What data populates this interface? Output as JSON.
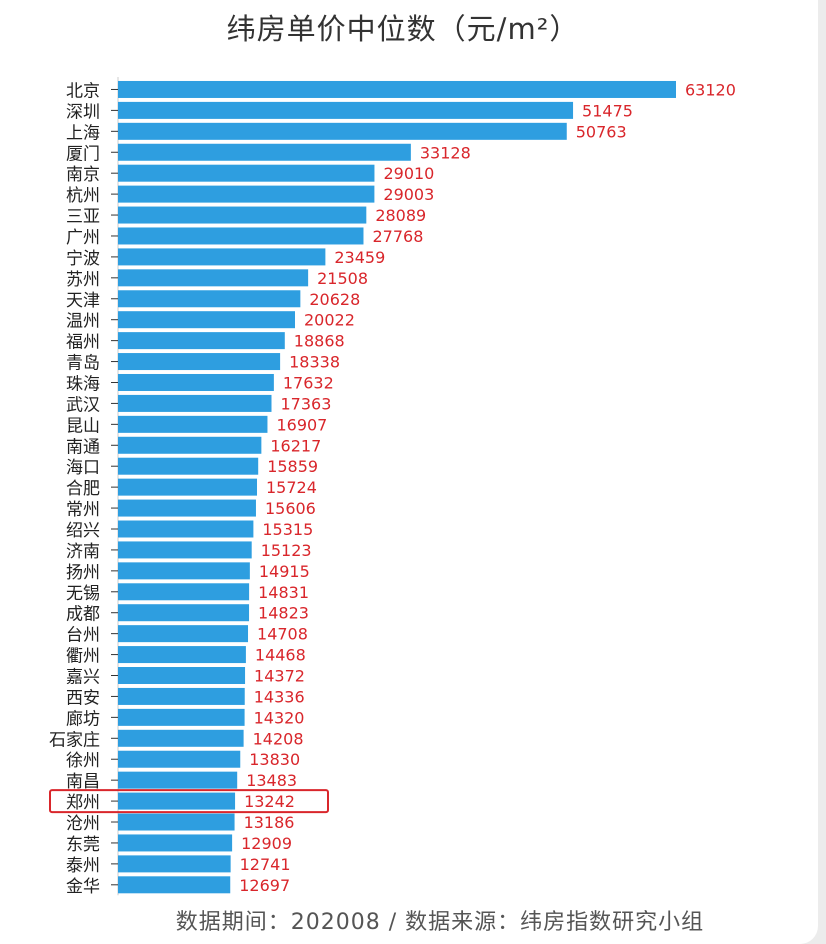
{
  "chart_data": {
    "type": "bar",
    "orientation": "horizontal",
    "title": "纬房单价中位数（元/m²）",
    "categories": [
      "北京",
      "深圳",
      "上海",
      "厦门",
      "南京",
      "杭州",
      "三亚",
      "广州",
      "宁波",
      "苏州",
      "天津",
      "温州",
      "福州",
      "青岛",
      "珠海",
      "武汉",
      "昆山",
      "南通",
      "海口",
      "合肥",
      "常州",
      "绍兴",
      "济南",
      "扬州",
      "无锡",
      "成都",
      "台州",
      "衢州",
      "嘉兴",
      "西安",
      "廊坊",
      "石家庄",
      "徐州",
      "南昌",
      "郑州",
      "沧州",
      "东莞",
      "泰州",
      "金华"
    ],
    "values": [
      63120,
      51475,
      50763,
      33128,
      29010,
      29003,
      28089,
      27768,
      23459,
      21508,
      20628,
      20022,
      18868,
      18338,
      17632,
      17363,
      16907,
      16217,
      15859,
      15724,
      15606,
      15315,
      15123,
      14915,
      14831,
      14823,
      14708,
      14468,
      14372,
      14336,
      14320,
      14208,
      13830,
      13483,
      13242,
      13186,
      12909,
      12741,
      12697
    ],
    "highlight": "郑州",
    "colors": {
      "bar": "#2e9ee0",
      "value_label": "#d9262b",
      "highlight_box": "#d9262b",
      "category_label": "#222222"
    },
    "grid": false,
    "legend": "none"
  },
  "footer": {
    "note": "数据期间：202008 / 数据来源：纬房指数研究小组"
  }
}
